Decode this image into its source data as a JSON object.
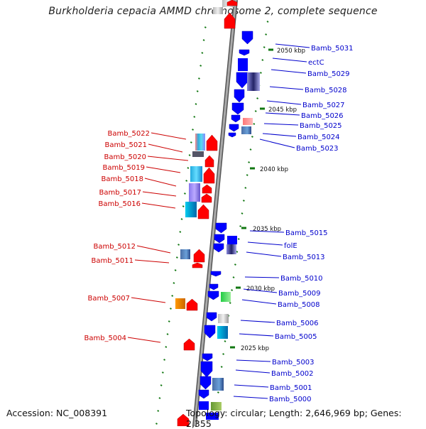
{
  "title": "Burkholderia cepacia AMMD chromosome 2, complete sequence",
  "footer": {
    "accession": "Accession: NC_008391",
    "topology": "Topology: circular; Length: 2,646,969 bp; Genes: 2,355"
  },
  "colors": {
    "forward_label": "#cc0000",
    "reverse_label": "#0000cc",
    "forward_gene": "#ff0000",
    "reverse_gene": "#0000ff",
    "backbone": "#777777",
    "ticks": "#117711"
  },
  "kbp_markers": [
    "2050 kbp",
    "2045 kbp",
    "2040 kbp",
    "2035 kbp",
    "2030 kbp",
    "2025 kbp"
  ],
  "left_labels": [
    "Bamb_5022",
    "Bamb_5021",
    "Bamb_5020",
    "Bamb_5019",
    "Bamb_5018",
    "Bamb_5017",
    "Bamb_5016",
    "Bamb_5012",
    "Bamb_5011",
    "Bamb_5007",
    "Bamb_5004"
  ],
  "right_labels": [
    "Bamb_5031",
    "ectC",
    "Bamb_5029",
    "Bamb_5028",
    "Bamb_5027",
    "Bamb_5026",
    "Bamb_5025",
    "Bamb_5024",
    "Bamb_5023",
    "Bamb_5015",
    "folE",
    "Bamb_5013",
    "Bamb_5010",
    "Bamb_5009",
    "Bamb_5008",
    "Bamb_5006",
    "Bamb_5005",
    "Bamb_5003",
    "Bamb_5002",
    "Bamb_5001",
    "Bamb_5000"
  ]
}
